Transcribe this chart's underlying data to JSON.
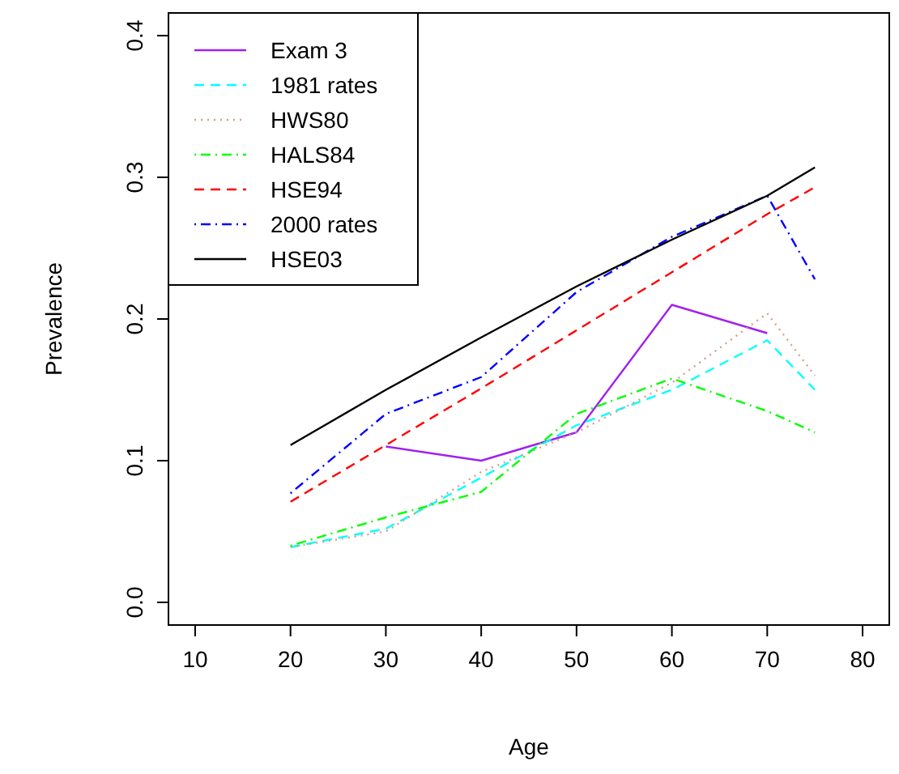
{
  "chart_data": {
    "type": "line",
    "xlabel": "Age",
    "ylabel": "Prevalence",
    "xlim": [
      7.2,
      82.8
    ],
    "xticks": [
      10,
      20,
      30,
      40,
      50,
      60,
      70,
      80
    ],
    "ylim": [
      -0.016,
      0.416
    ],
    "yticks": [
      {
        "value": 0,
        "label": "0.0"
      },
      0.1,
      0.2,
      0.3,
      0.4
    ],
    "grid": false,
    "legend": "top left",
    "series": [
      {
        "name": "Exam 3",
        "color": "#a020f0",
        "line_style": "solid",
        "x": [
          30,
          40,
          50,
          60,
          70
        ],
        "values": [
          0.11,
          0.1,
          0.12,
          0.21,
          0.19
        ]
      },
      {
        "name": "1981 rates",
        "color": "#00ffff",
        "line_style": "dashed",
        "x": [
          20,
          30,
          40,
          50,
          60,
          70,
          75
        ],
        "values": [
          0.039,
          0.052,
          0.088,
          0.125,
          0.15,
          0.185,
          0.15
        ]
      },
      {
        "name": "HWS80",
        "color": "#d2a08c",
        "line_style": "dotted",
        "x": [
          20,
          30,
          40,
          50,
          60,
          70,
          75
        ],
        "values": [
          0.039,
          0.05,
          0.092,
          0.12,
          0.155,
          0.204,
          0.16
        ]
      },
      {
        "name": "HALS84",
        "color": "#00ff00",
        "line_style": "dashdot",
        "x": [
          20,
          30,
          40,
          50,
          60,
          70,
          75
        ],
        "values": [
          0.04,
          0.06,
          0.078,
          0.133,
          0.158,
          0.135,
          0.12
        ]
      },
      {
        "name": "HSE94",
        "color": "#ff0000",
        "line_style": "dashed",
        "x": [
          20,
          30,
          40,
          50,
          60,
          70,
          75
        ],
        "values": [
          0.071,
          0.111,
          0.151,
          0.192,
          0.233,
          0.274,
          0.293
        ]
      },
      {
        "name": "2000 rates",
        "color": "#0000ff",
        "line_style": "dashdot",
        "x": [
          20,
          30,
          40,
          50,
          60,
          70,
          75
        ],
        "values": [
          0.077,
          0.133,
          0.159,
          0.219,
          0.258,
          0.287,
          0.228
        ]
      },
      {
        "name": "HSE03",
        "color": "#000000",
        "line_style": "solid",
        "x": [
          20,
          30,
          40,
          50,
          60,
          70,
          75
        ],
        "values": [
          0.111,
          0.15,
          0.187,
          0.223,
          0.256,
          0.287,
          0.307
        ]
      }
    ]
  }
}
